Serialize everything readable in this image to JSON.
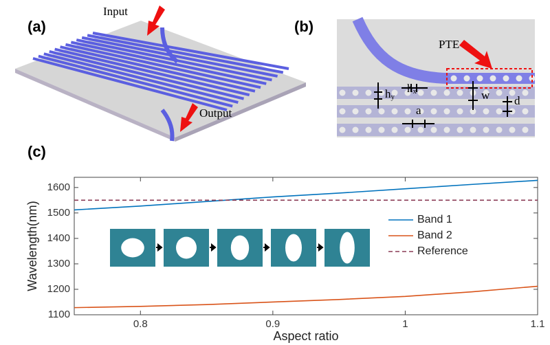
{
  "figure": {
    "panel_a": {
      "label": "(a)",
      "input": "Input",
      "output": "Output"
    },
    "panel_b": {
      "label": "(b)",
      "pte": "PTE",
      "hx": {
        "text": "h",
        "sub": "x"
      },
      "hy": {
        "text": "h",
        "sub": "y"
      },
      "w": "w",
      "d": "d",
      "a": "a"
    },
    "panel_c": {
      "label": "(c)"
    }
  },
  "chart_data": {
    "type": "line",
    "xlabel": "Aspect ratio",
    "ylabel": "Wavelength(nm)",
    "x": [
      0.75,
      0.8,
      0.85,
      0.9,
      0.95,
      1.0,
      1.05,
      1.1
    ],
    "series": [
      {
        "name": "Band 1",
        "color": "#0072bd",
        "values": [
          1512,
          1527,
          1545,
          1563,
          1578,
          1595,
          1612,
          1628
        ]
      },
      {
        "name": "Band 2",
        "color": "#d95319",
        "values": [
          1128,
          1133,
          1140,
          1150,
          1160,
          1172,
          1190,
          1212
        ]
      },
      {
        "name": "Reference",
        "color": "#8a3b55",
        "dashed": true,
        "values": [
          1550,
          1550,
          1550,
          1550,
          1550,
          1550,
          1550,
          1550
        ]
      }
    ],
    "xlim": [
      0.75,
      1.1
    ],
    "xticks": [
      0.8,
      0.9,
      1,
      1.1
    ],
    "ylim": [
      1100,
      1640
    ],
    "yticks": [
      1100,
      1200,
      1300,
      1400,
      1500,
      1600
    ],
    "grid": false,
    "legend": "right"
  }
}
